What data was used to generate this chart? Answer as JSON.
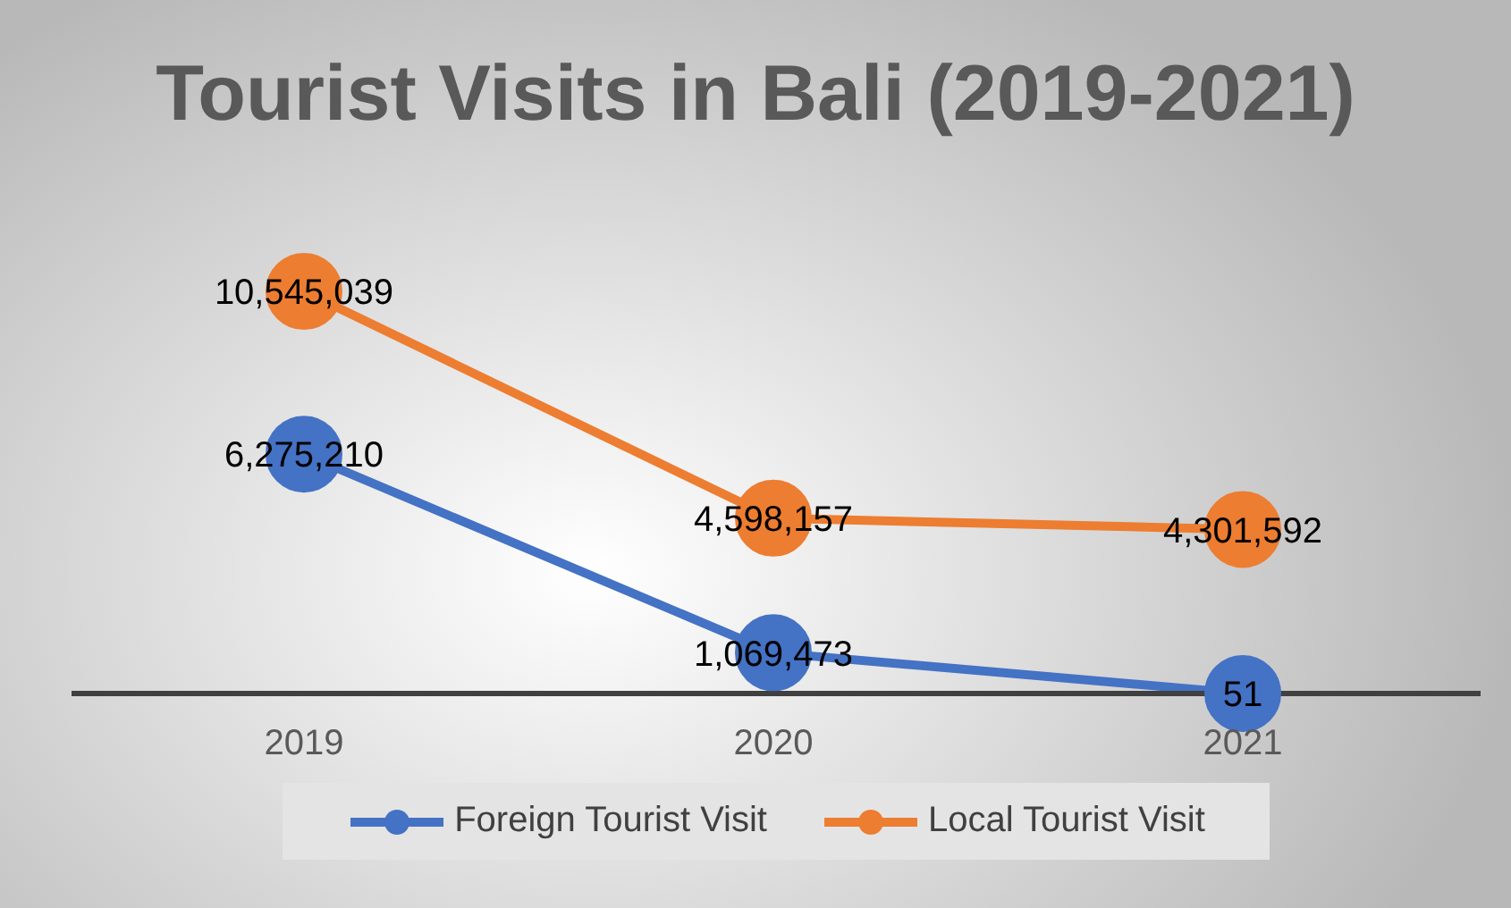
{
  "chart_data": {
    "type": "line",
    "title": "Tourist Visits in Bali (2019-2021)",
    "categories": [
      "2019",
      "2020",
      "2021"
    ],
    "series": [
      {
        "name": "Foreign Tourist Visit",
        "color": "#4472c4",
        "values": [
          6275210,
          1069473,
          51
        ],
        "value_labels": [
          "6,275,210",
          "1,069,473",
          "51"
        ]
      },
      {
        "name": "Local Tourist Visit",
        "color": "#ed7d31",
        "values": [
          10545039,
          4598157,
          4301592
        ],
        "value_labels": [
          "10,545,039",
          "4,598,157",
          "4,301,592"
        ]
      }
    ],
    "legend": "bottom",
    "marker": "circle",
    "grid": false,
    "tick_labels": "x"
  }
}
